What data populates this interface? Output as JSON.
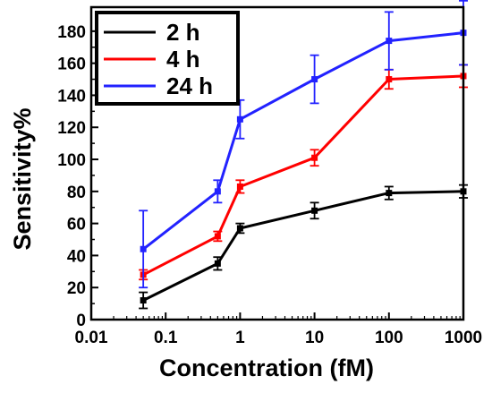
{
  "chart_data": {
    "type": "line",
    "xlabel": "Concentration (fM)",
    "ylabel": "Sensitivity%",
    "x_scale": "log",
    "xlim": [
      0.01,
      1000
    ],
    "ylim": [
      0,
      195
    ],
    "x_ticks": [
      "0.01",
      "0.1",
      "1",
      "10",
      "100",
      "1000"
    ],
    "y_ticks": [
      "0",
      "20",
      "40",
      "60",
      "80",
      "100",
      "120",
      "140",
      "160",
      "180"
    ],
    "legend_position": "top-left",
    "grid": false,
    "x": [
      0.05,
      0.5,
      1,
      10,
      100,
      1000
    ],
    "series": [
      {
        "name": "2 h",
        "color": "#000000",
        "values": [
          12,
          35,
          57,
          68,
          79,
          80
        ],
        "errors": [
          5,
          4,
          3,
          5,
          4,
          4
        ]
      },
      {
        "name": "4 h",
        "color": "#ff0000",
        "values": [
          28,
          52,
          83,
          101,
          150,
          152
        ],
        "errors": [
          3,
          3,
          4,
          5,
          6,
          7
        ]
      },
      {
        "name": "24 h",
        "color": "#2222ff",
        "values": [
          44,
          80,
          125,
          150,
          174,
          179
        ],
        "errors": [
          24,
          7,
          12,
          15,
          18,
          20
        ]
      }
    ]
  }
}
